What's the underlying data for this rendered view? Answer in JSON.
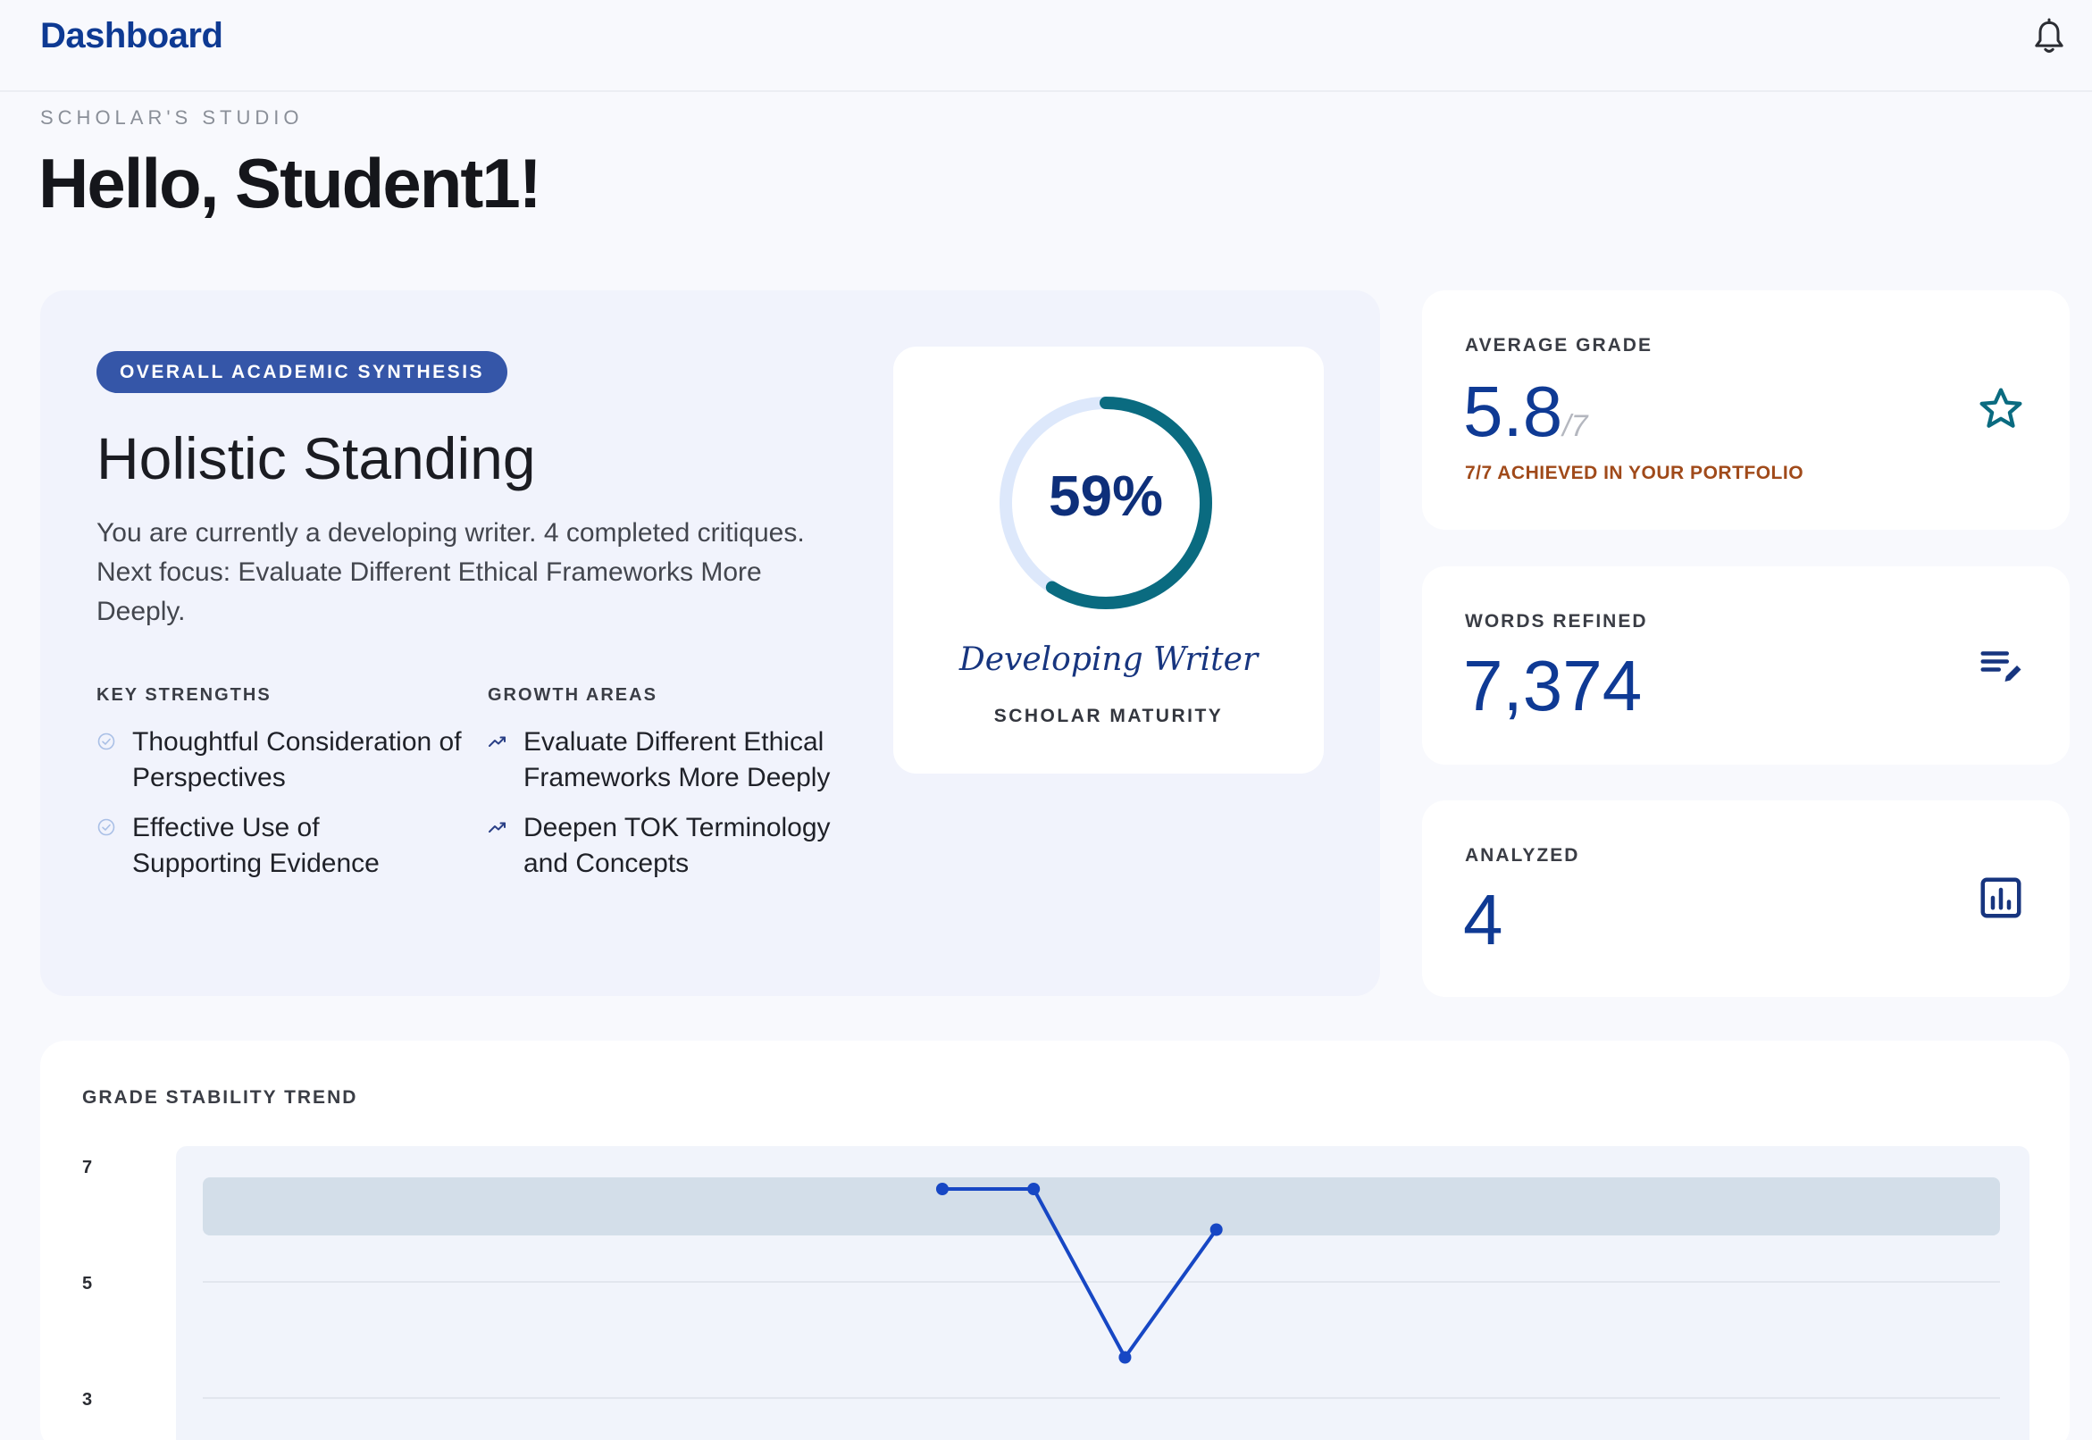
{
  "header": {
    "title": "Dashboard",
    "notification_icon": "bell-icon"
  },
  "page": {
    "eyebrow": "SCHOLAR'S STUDIO",
    "greeting": "Hello, Student1!"
  },
  "synthesis": {
    "badge": "OVERALL ACADEMIC SYNTHESIS",
    "title": "Holistic Standing",
    "description": "You are currently a developing writer. 4 completed critiques. Next focus: Evaluate Different Ethical Frameworks More Deeply.",
    "strengths_heading": "KEY STRENGTHS",
    "strengths": [
      "Thoughtful Consideration of Perspectives",
      "Effective Use of Supporting Evidence"
    ],
    "growth_heading": "GROWTH AREAS",
    "growth": [
      "Evaluate Different Ethical Frameworks More Deeply",
      "Deepen TOK Terminology and Concepts"
    ],
    "maturity": {
      "percent": 59,
      "percent_label": "59%",
      "name": "Developing Writer",
      "subtitle": "SCHOLAR MATURITY",
      "ring_color": "#0a6b80",
      "track_color": "#dde8fb"
    }
  },
  "stats": {
    "average_grade": {
      "label": "AVERAGE GRADE",
      "value": "5.8",
      "suffix": "/7",
      "note": "7/7 ACHIEVED IN YOUR PORTFOLIO",
      "icon": "star-icon"
    },
    "words_refined": {
      "label": "WORDS REFINED",
      "value": "7,374",
      "icon": "edit-list-icon"
    },
    "analyzed": {
      "label": "ANALYZED",
      "value": "4",
      "icon": "bar-chart-icon"
    }
  },
  "trend": {
    "title": "GRADE STABILITY TREND",
    "chart_data": {
      "type": "line",
      "title": "GRADE STABILITY TREND",
      "yticks": [
        7,
        5,
        3
      ],
      "ylim": [
        2,
        7.5
      ],
      "band": [
        5.8,
        6.8
      ],
      "series": [
        {
          "values": [
            6.6,
            6.6,
            3.7,
            5.9
          ]
        }
      ],
      "x_fraction": [
        0.43,
        0.475,
        0.52,
        0.565
      ],
      "line_color": "#1747c4",
      "band_color": "#d3dee9"
    }
  }
}
